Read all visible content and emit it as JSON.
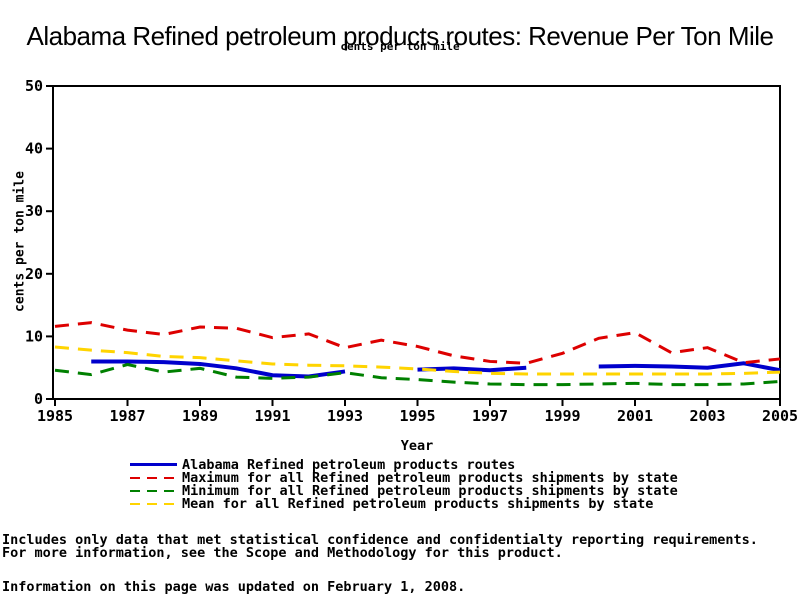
{
  "title": "Alabama Refined petroleum products routes: Revenue Per Ton Mile",
  "subtitle": "cents per ton mile",
  "axes": {
    "x_title": "Year",
    "y_title": "cents per ton mile",
    "x_ticks": [
      1985,
      1987,
      1989,
      1991,
      1993,
      1995,
      1997,
      1999,
      2001,
      2003,
      2005
    ],
    "y_ticks": [
      0,
      10,
      20,
      30,
      40,
      50
    ]
  },
  "chart_data": {
    "type": "line",
    "title": "Alabama Refined petroleum products routes: Revenue Per Ton Mile",
    "xlabel": "Year",
    "ylabel": "cents per ton mile",
    "xlim": [
      1985,
      2005
    ],
    "ylim": [
      0,
      50
    ],
    "grid": false,
    "legend_position": "bottom",
    "x": [
      1985,
      1986,
      1987,
      1988,
      1989,
      1990,
      1991,
      1992,
      1993,
      1994,
      1995,
      1996,
      1997,
      1998,
      1999,
      2000,
      2001,
      2002,
      2003,
      2004,
      2005
    ],
    "series": [
      {
        "name": "Alabama Refined petroleum products routes",
        "color": "#0000CC",
        "style": "solid",
        "values": [
          null,
          6.0,
          6.0,
          5.9,
          5.6,
          4.9,
          3.8,
          3.6,
          4.4,
          null,
          4.7,
          4.9,
          4.6,
          5.0,
          null,
          5.2,
          5.3,
          5.2,
          5.0,
          5.7,
          4.6
        ]
      },
      {
        "name": "Maximum for all Refined petroleum products shipments by state",
        "color": "#DD0000",
        "style": "dashed",
        "values": [
          11.6,
          12.2,
          11.0,
          10.3,
          11.5,
          11.3,
          9.8,
          10.4,
          8.2,
          9.4,
          8.4,
          6.9,
          6.0,
          5.7,
          7.3,
          9.7,
          10.6,
          7.4,
          8.2,
          5.8,
          6.4
        ]
      },
      {
        "name": "Minimum for all Refined petroleum products shipments by state",
        "color": "#008000",
        "style": "dashed",
        "values": [
          4.6,
          3.9,
          5.5,
          4.3,
          4.9,
          3.5,
          3.3,
          3.5,
          4.2,
          3.4,
          3.1,
          2.7,
          2.4,
          2.3,
          2.3,
          2.4,
          2.5,
          2.3,
          2.3,
          2.4,
          2.8
        ]
      },
      {
        "name": "Mean for all Refined petroleum products shipments by state",
        "color": "#FFD400",
        "style": "dashed",
        "values": [
          8.3,
          7.8,
          7.4,
          6.8,
          6.6,
          6.1,
          5.6,
          5.4,
          5.3,
          5.1,
          4.8,
          4.4,
          4.1,
          4.0,
          4.0,
          4.0,
          4.0,
          4.0,
          4.0,
          4.1,
          4.3
        ]
      }
    ]
  },
  "footer": {
    "line1": "Includes only data that met statistical confidence and confidentialty reporting requirements.",
    "line2": "For more information, see the Scope and Methodology for this product.",
    "updated": "Information on this page was updated on February 1, 2008."
  }
}
